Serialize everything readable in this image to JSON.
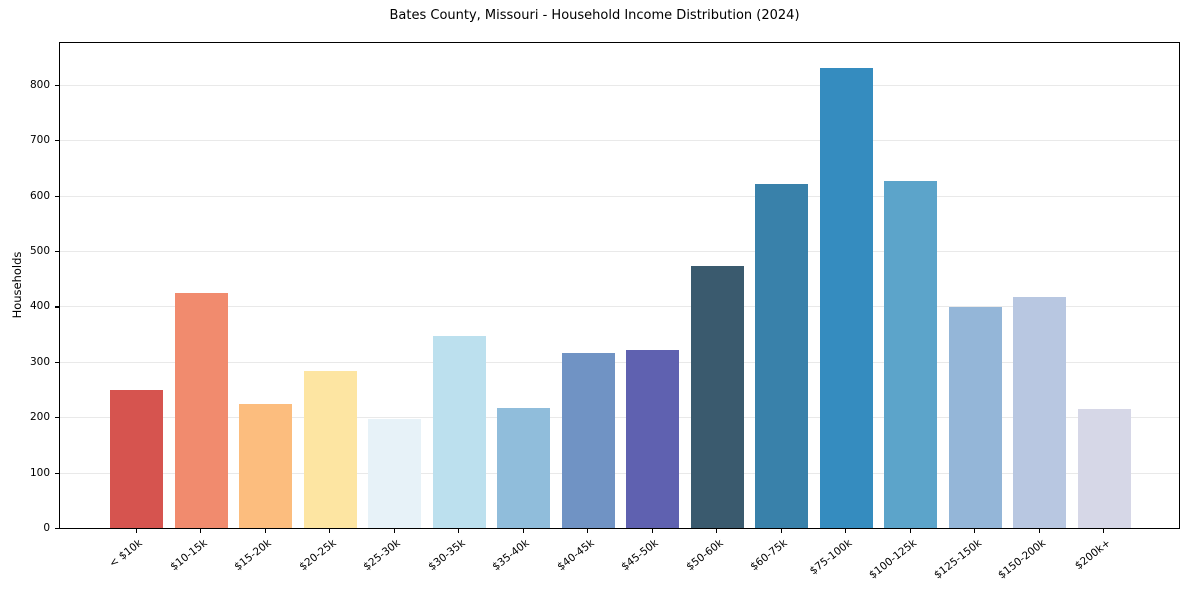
{
  "chart_data": {
    "type": "bar",
    "title": "Bates County, Missouri - Household Income Distribution (2024)",
    "xlabel": "",
    "ylabel": "Households",
    "categories": [
      "< $10k",
      "$10-15k",
      "$15-20k",
      "$20-25k",
      "$25-30k",
      "$30-35k",
      "$35-40k",
      "$40-45k",
      "$45-50k",
      "$50-60k",
      "$60-75k",
      "$75-100k",
      "$100-125k",
      "$125-150k",
      "$150-200k",
      "$200k+"
    ],
    "values": [
      249,
      424,
      223,
      284,
      197,
      346,
      217,
      315,
      322,
      472,
      621,
      830,
      626,
      398,
      417,
      215
    ],
    "bar_colors": [
      "#d6544f",
      "#f18b6e",
      "#fcbd7e",
      "#fde5a2",
      "#e7f2f8",
      "#bce0ee",
      "#90bddb",
      "#7093c4",
      "#5f61b0",
      "#3a5a6e",
      "#3981aa",
      "#358cbf",
      "#5ca4ca",
      "#94b6d8",
      "#b8c7e1",
      "#d6d7e7"
    ],
    "yticks": [
      0,
      100,
      200,
      300,
      400,
      500,
      600,
      700,
      800
    ],
    "ylim": [
      0,
      877
    ],
    "grid": "horizontal-only",
    "legend": "none",
    "plot_border": "full-box",
    "background_color": "#ffffff",
    "x_label_rotation_deg": 38
  }
}
